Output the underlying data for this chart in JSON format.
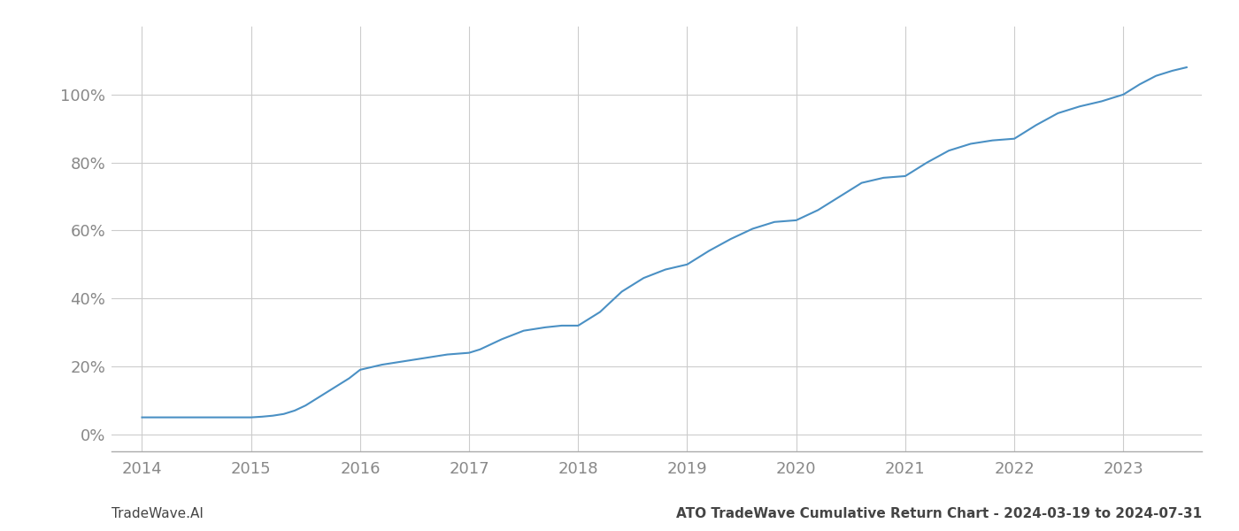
{
  "title_left": "TradeWave.AI",
  "title_right": "ATO TradeWave Cumulative Return Chart - 2024-03-19 to 2024-07-31",
  "line_color": "#4a90c4",
  "background_color": "#ffffff",
  "grid_color": "#cccccc",
  "data_points": {
    "x": [
      2014.0,
      2014.2,
      2014.4,
      2014.6,
      2014.8,
      2015.0,
      2015.1,
      2015.2,
      2015.3,
      2015.4,
      2015.5,
      2015.6,
      2015.7,
      2015.8,
      2015.9,
      2016.0,
      2016.2,
      2016.4,
      2016.6,
      2016.8,
      2017.0,
      2017.1,
      2017.2,
      2017.3,
      2017.5,
      2017.7,
      2017.85,
      2018.0,
      2018.2,
      2018.4,
      2018.6,
      2018.8,
      2019.0,
      2019.2,
      2019.4,
      2019.6,
      2019.8,
      2020.0,
      2020.2,
      2020.4,
      2020.6,
      2020.8,
      2021.0,
      2021.2,
      2021.4,
      2021.6,
      2021.8,
      2022.0,
      2022.2,
      2022.4,
      2022.6,
      2022.8,
      2023.0,
      2023.15,
      2023.3,
      2023.45,
      2023.58
    ],
    "y": [
      5.0,
      5.0,
      5.0,
      5.0,
      5.0,
      5.0,
      5.2,
      5.5,
      6.0,
      7.0,
      8.5,
      10.5,
      12.5,
      14.5,
      16.5,
      19.0,
      20.5,
      21.5,
      22.5,
      23.5,
      24.0,
      25.0,
      26.5,
      28.0,
      30.5,
      31.5,
      32.0,
      32.0,
      36.0,
      42.0,
      46.0,
      48.5,
      50.0,
      54.0,
      57.5,
      60.5,
      62.5,
      63.0,
      66.0,
      70.0,
      74.0,
      75.5,
      76.0,
      80.0,
      83.5,
      85.5,
      86.5,
      87.0,
      91.0,
      94.5,
      96.5,
      98.0,
      100.0,
      103.0,
      105.5,
      107.0,
      108.0
    ]
  },
  "ylim": [
    -5,
    120
  ],
  "xlim": [
    2013.72,
    2023.72
  ],
  "yticks": [
    0,
    20,
    40,
    60,
    80,
    100
  ],
  "ytick_labels": [
    "0%",
    "20%",
    "40%",
    "60%",
    "80%",
    "100%"
  ],
  "xticks": [
    2014,
    2015,
    2016,
    2017,
    2018,
    2019,
    2020,
    2021,
    2022,
    2023
  ],
  "line_width": 1.5,
  "text_color": "#888888",
  "bottom_text_color": "#444444",
  "spine_color": "#aaaaaa",
  "title_fontsize": 11,
  "tick_fontsize": 13
}
